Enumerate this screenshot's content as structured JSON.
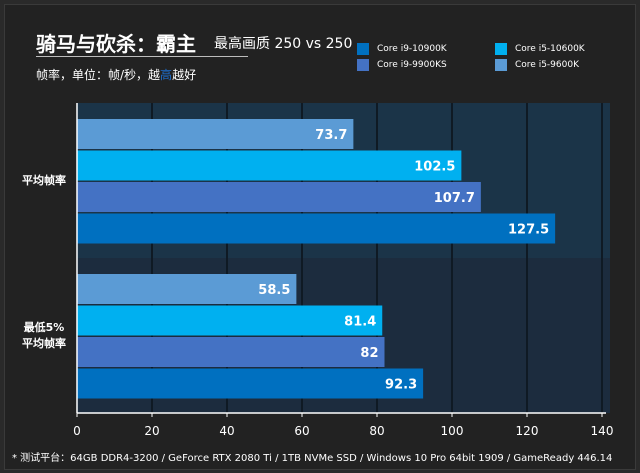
{
  "title": "骑马与砍杀：霸主",
  "title_sub": "最高画质 250 vs 250",
  "subtitle": {
    "prefix": "帧率，单位：帧/秒，越",
    "highlight": "高",
    "suffix": "越好"
  },
  "footnote": "* 测试平台：64GB DDR4-3200 / GeForce RTX 2080 Ti / 1TB NVMe SSD / Windows 10 Pro 64bit 1909 / GameReady 446.14",
  "colors": {
    "background": "#222222",
    "plot_band_1": "#1b3448",
    "plot_band_2": "#1c2c3e",
    "grid": "#0f1a24",
    "axis": "#ffffff"
  },
  "chart_data": {
    "type": "bar",
    "orientation": "horizontal",
    "categories": [
      "平均帧率",
      "最低5%\n平均帧率"
    ],
    "series": [
      {
        "name": "Core i5-9600K",
        "color": "#5b9bd5",
        "values": [
          73.7,
          58.5
        ]
      },
      {
        "name": "Core i5-10600K",
        "color": "#00b0f0",
        "values": [
          102.5,
          81.4
        ]
      },
      {
        "name": "Core i9-9900KS",
        "color": "#4472c4",
        "values": [
          107.7,
          82
        ]
      },
      {
        "name": "Core i9-10900K",
        "color": "#0070c0",
        "values": [
          127.5,
          92.3
        ]
      }
    ],
    "legend_order": [
      "Core i9-10900K",
      "Core i5-10600K",
      "Core i9-9900KS",
      "Core i5-9600K"
    ],
    "xlim": [
      0,
      140
    ],
    "xticks": [
      0,
      20,
      40,
      60,
      80,
      100,
      120,
      140
    ],
    "grid": true,
    "legend_position": "top-right",
    "data_labels": true
  }
}
